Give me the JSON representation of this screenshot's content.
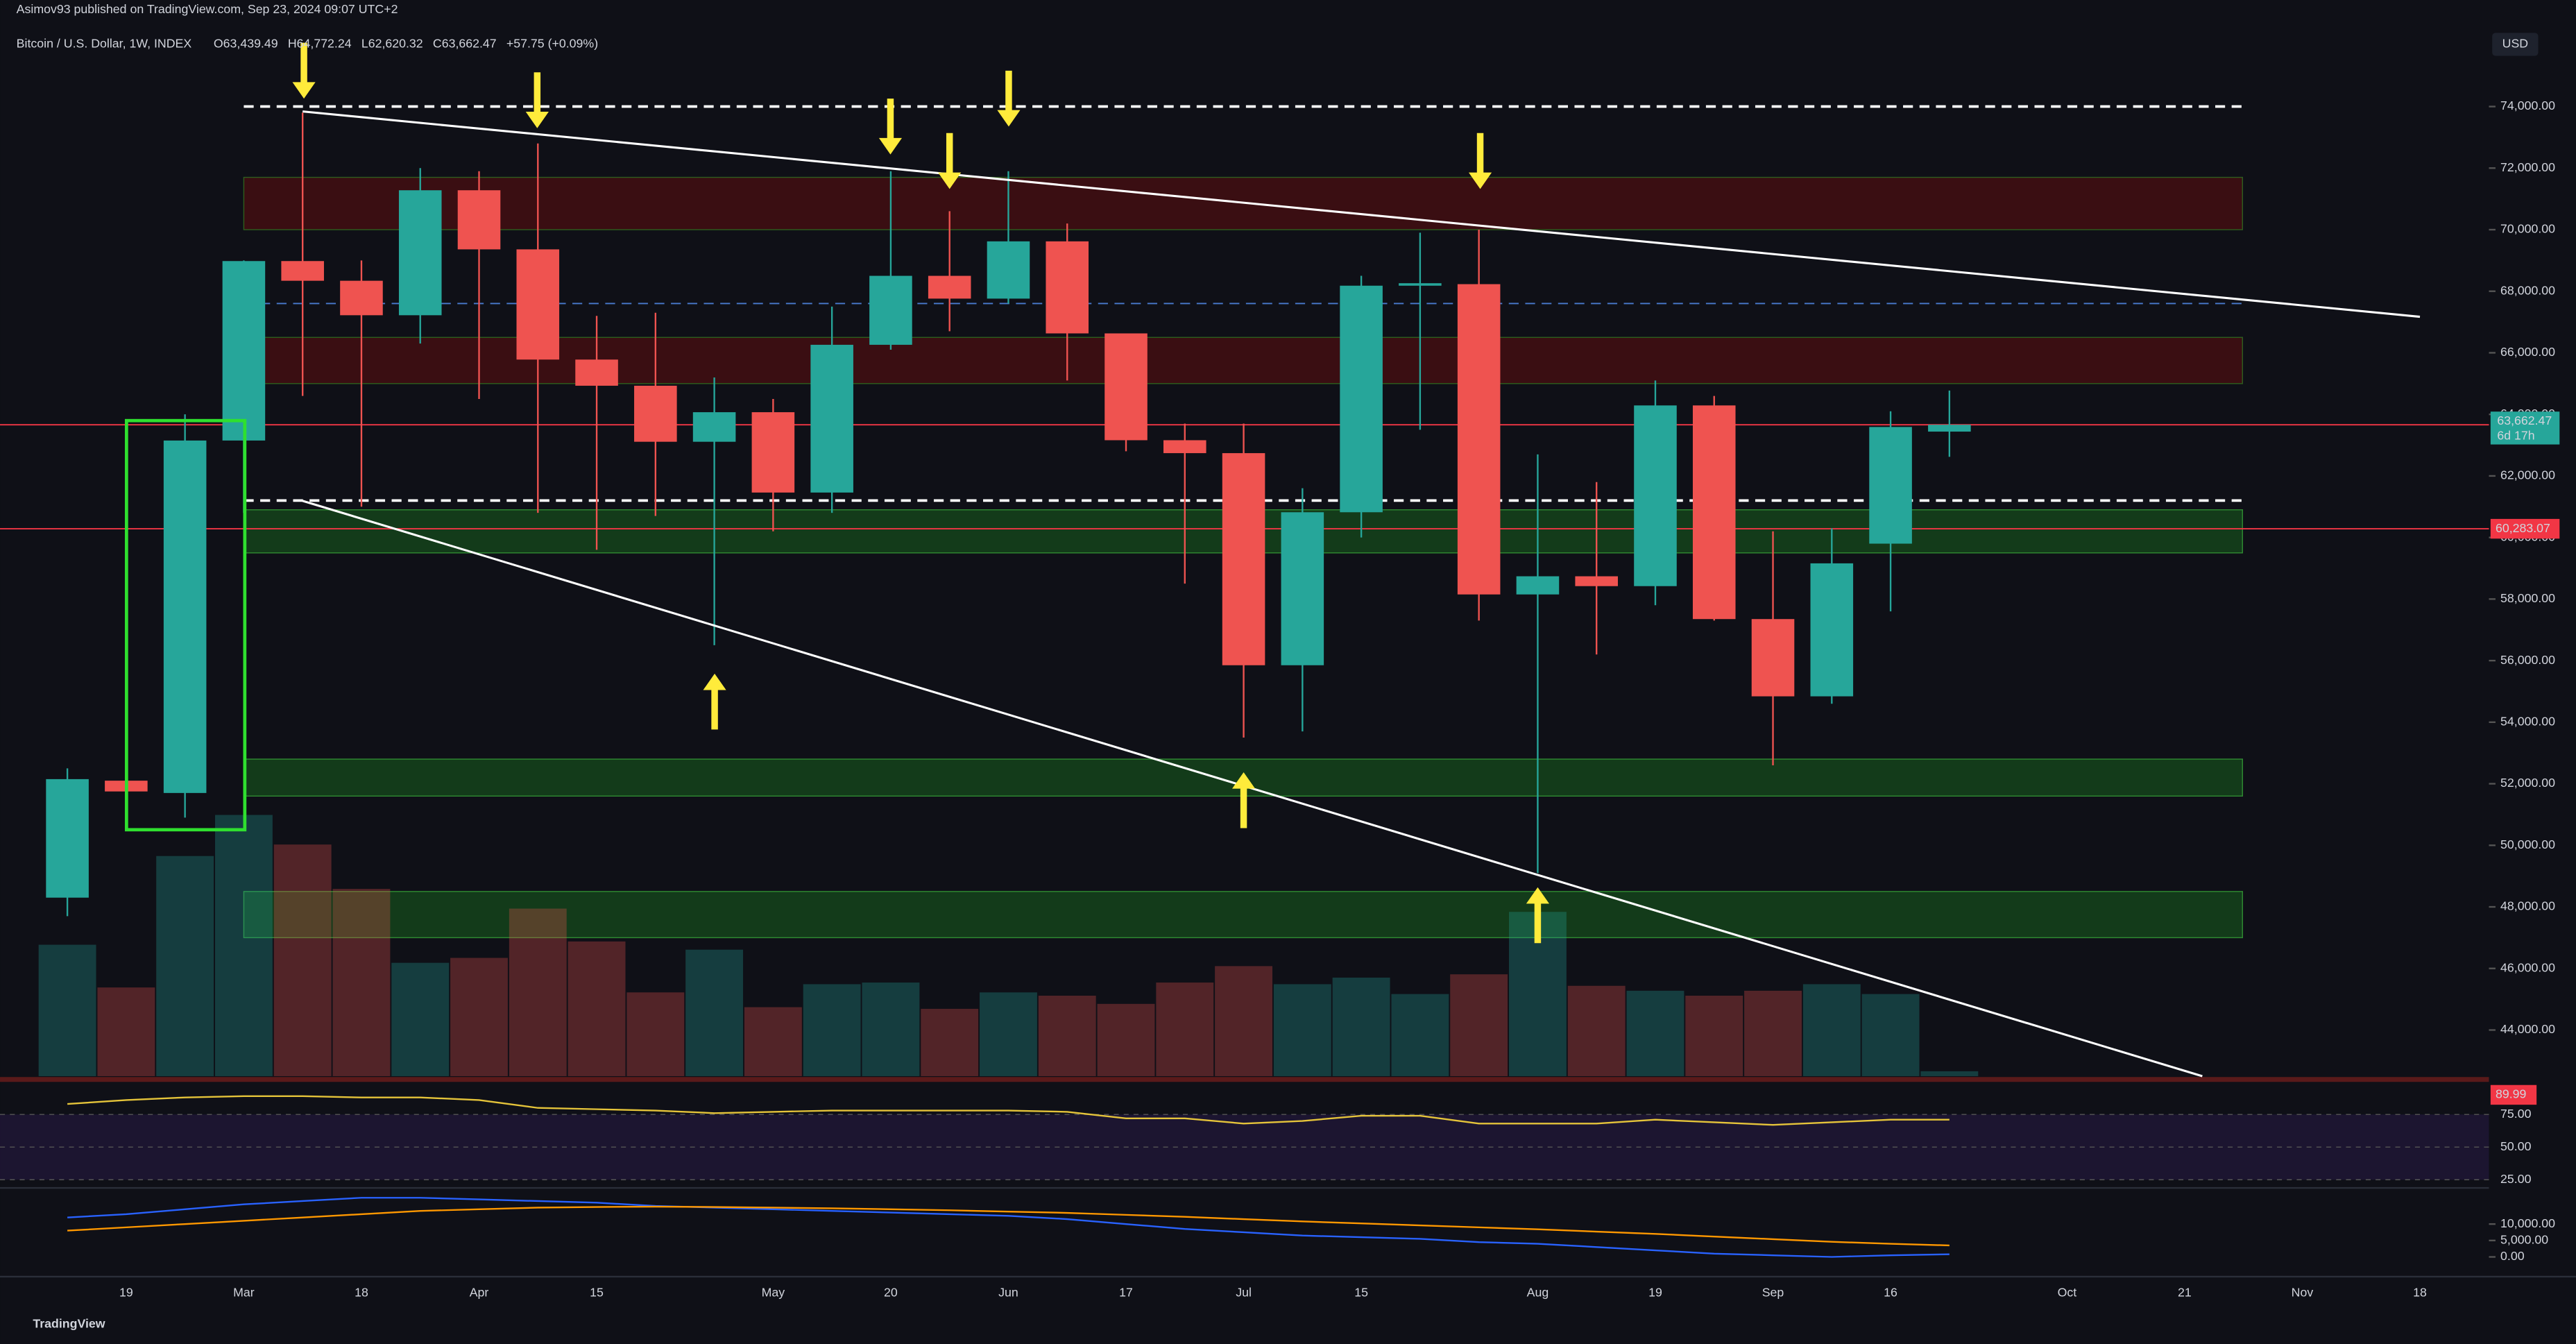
{
  "chart_data": {
    "type": "candlestick",
    "publisher": "Asimov93 published on TradingView.com, Sep 23, 2024 09:07 UTC+2",
    "title": "Bitcoin / U.S. Dollar, 1W, INDEX",
    "ohlc_header": [
      "O63,439.49",
      "H64,772.24",
      "L62,620.32",
      "C63,662.47",
      "+57.75 (+0.09%)"
    ],
    "currency": "USD",
    "brand": "TradingView",
    "categories": [
      null,
      "19",
      null,
      "Mar",
      null,
      "18",
      null,
      "Apr",
      null,
      "15",
      null,
      null,
      "May",
      null,
      "20",
      null,
      "Jun",
      null,
      "17",
      null,
      "Jul",
      null,
      "15",
      null,
      null,
      "Aug",
      null,
      "19",
      null,
      "Sep",
      null,
      "16",
      null,
      null,
      "Oct",
      null,
      "21",
      null,
      "Nov",
      null,
      "18"
    ],
    "open": [
      48300,
      52100,
      51700,
      63150,
      68980,
      68340,
      67220,
      71280,
      69360,
      65780,
      64930,
      63110,
      64070,
      61460,
      66260,
      68500,
      67760,
      69620,
      66630,
      63160,
      62740,
      55850,
      60820,
      68180,
      68230,
      58150,
      58740,
      58420,
      64290,
      57350,
      54840,
      59800,
      63439.49,
      null,
      null,
      null,
      null,
      null,
      null,
      null,
      null
    ],
    "high": [
      52500,
      52400,
      64000,
      69000,
      73800,
      69000,
      72000,
      71900,
      72800,
      67200,
      67300,
      65200,
      64500,
      67500,
      71900,
      70600,
      71900,
      70200,
      66600,
      63700,
      63700,
      61600,
      68500,
      69900,
      70000,
      62700,
      61800,
      65100,
      64600,
      60200,
      60300,
      64100,
      64772.24,
      null,
      null,
      null,
      null,
      null,
      null,
      null,
      null
    ],
    "low": [
      47700,
      50600,
      50900,
      60800,
      64600,
      61000,
      66300,
      64500,
      60800,
      59600,
      60700,
      56500,
      60200,
      60800,
      66100,
      66700,
      67600,
      65100,
      62800,
      58500,
      53500,
      53700,
      60000,
      63500,
      57300,
      49100,
      56200,
      57800,
      57300,
      52600,
      54600,
      57600,
      62620.32,
      null,
      null,
      null,
      null,
      null,
      null,
      null,
      null
    ],
    "close": [
      52150,
      51750,
      63150,
      68980,
      68340,
      67220,
      71280,
      69360,
      65780,
      64930,
      63110,
      64070,
      61460,
      66260,
      68500,
      67760,
      69620,
      66630,
      63160,
      62740,
      55850,
      60820,
      68180,
      68260,
      58150,
      58740,
      58420,
      64290,
      57350,
      54840,
      59160,
      63590,
      63662.47,
      null,
      null,
      null,
      null,
      null,
      null,
      null,
      null
    ],
    "up_color": "#26a69a",
    "down_color": "#ef5350",
    "ylim": [
      42500,
      76500
    ],
    "yticks": [
      {
        "value": 44000,
        "label": "44,000.00"
      },
      {
        "value": 46000,
        "label": "46,000.00"
      },
      {
        "value": 48000,
        "label": "48,000.00"
      },
      {
        "value": 50000,
        "label": "50,000.00"
      },
      {
        "value": 52000,
        "label": "52,000.00"
      },
      {
        "value": 54000,
        "label": "54,000.00"
      },
      {
        "value": 56000,
        "label": "56,000.00"
      },
      {
        "value": 58000,
        "label": "58,000.00"
      },
      {
        "value": 60000,
        "label": "60,000.00"
      },
      {
        "value": 62000,
        "label": "62,000.00"
      },
      {
        "value": 64000,
        "label": "64,000.00"
      },
      {
        "value": 66000,
        "label": "66,000.00"
      },
      {
        "value": 68000,
        "label": "68,000.00"
      },
      {
        "value": 70000,
        "label": "70,000.00"
      },
      {
        "value": 72000,
        "label": "72,000.00"
      },
      {
        "value": 74000,
        "label": "74,000.00"
      }
    ],
    "volume": {
      "ylim": [
        0,
        160
      ],
      "values": [
        80,
        54,
        134,
        159,
        141,
        114,
        69,
        72,
        102,
        82,
        51,
        77,
        42,
        56,
        57,
        41,
        51,
        49,
        44,
        57,
        67,
        56,
        60,
        50,
        62,
        100,
        55,
        52,
        49,
        52,
        56,
        50,
        3,
        null,
        null,
        null,
        null,
        null,
        null,
        null,
        null
      ]
    },
    "zones": [
      {
        "low": 70000,
        "high": 71700,
        "color": "#4a0d12"
      },
      {
        "low": 65000,
        "high": 66500,
        "color": "#4a0d12"
      },
      {
        "low": 59500,
        "high": 60900,
        "color": "#154a1c"
      },
      {
        "low": 51600,
        "high": 52800,
        "color": "#154a1c"
      },
      {
        "low": 47000,
        "high": 48500,
        "color": "#154a1c"
      }
    ],
    "levels": [
      {
        "value": 74000,
        "color": "#ffffff",
        "dashed": true
      },
      {
        "value": 61200,
        "color": "#ffffff",
        "dashed": true
      },
      {
        "value": 67600,
        "color": "#4a7bd0",
        "dashed": true
      },
      {
        "value": 63662.47,
        "color": "#f23645",
        "dashed": false
      },
      {
        "value": 60283.07,
        "color": "#f23645",
        "dashed": false
      }
    ],
    "trendlines": [
      {
        "x": [
          4,
          40
        ],
        "y": [
          73840,
          67170
        ]
      },
      {
        "x": [
          4,
          36.3
        ],
        "y": [
          61190,
          42500
        ]
      }
    ],
    "last_price": {
      "value": 63662.47,
      "label": "63,662.47",
      "countdown": "6d 17h"
    },
    "marker_price": {
      "value": 60283.07,
      "label": "60,283.07"
    },
    "rsi": {
      "ylim": [
        20,
        98
      ],
      "yticks": [
        {
          "value": 25,
          "label": "25.00"
        },
        {
          "value": 50,
          "label": "50.00"
        },
        {
          "value": 75,
          "label": "75.00"
        }
      ],
      "band": 89.99,
      "values": [
        83,
        86,
        88,
        89,
        89,
        88,
        88,
        86,
        80,
        79,
        78,
        76,
        77,
        78,
        78,
        78,
        78,
        77,
        72,
        72,
        68,
        70,
        74,
        74,
        68,
        68,
        68,
        71,
        69,
        67,
        69,
        71,
        71,
        null,
        null,
        null,
        null,
        null,
        null,
        null,
        null
      ]
    },
    "macd": {
      "ylim": [
        -3500,
        20000
      ],
      "yticks": [
        {
          "value": 0,
          "label": "0.00"
        },
        {
          "value": 5000,
          "label": "5,000.00"
        },
        {
          "value": 10000,
          "label": "10,000.00"
        }
      ],
      "lines": [
        {
          "color": "#2962ff",
          "values": [
            12000,
            13000,
            14500,
            16000,
            17000,
            18000,
            18000,
            17500,
            17000,
            16500,
            15500,
            15000,
            14500,
            14000,
            13500,
            13000,
            12500,
            11500,
            10000,
            8500,
            7500,
            6500,
            6000,
            5500,
            4500,
            4000,
            3000,
            2000,
            1000,
            500,
            0,
            500,
            800,
            null,
            null,
            null,
            null,
            null,
            null,
            null,
            null
          ]
        },
        {
          "color": "#ff9800",
          "values": [
            8000,
            9000,
            10000,
            11000,
            12000,
            13000,
            14000,
            14500,
            15000,
            15200,
            15300,
            15200,
            15000,
            14800,
            14500,
            14200,
            13800,
            13400,
            12800,
            12200,
            11500,
            10800,
            10200,
            9600,
            9000,
            8400,
            7700,
            7000,
            6200,
            5400,
            4600,
            4000,
            3500,
            null,
            null,
            null,
            null,
            null,
            null,
            null,
            null
          ]
        }
      ]
    }
  }
}
